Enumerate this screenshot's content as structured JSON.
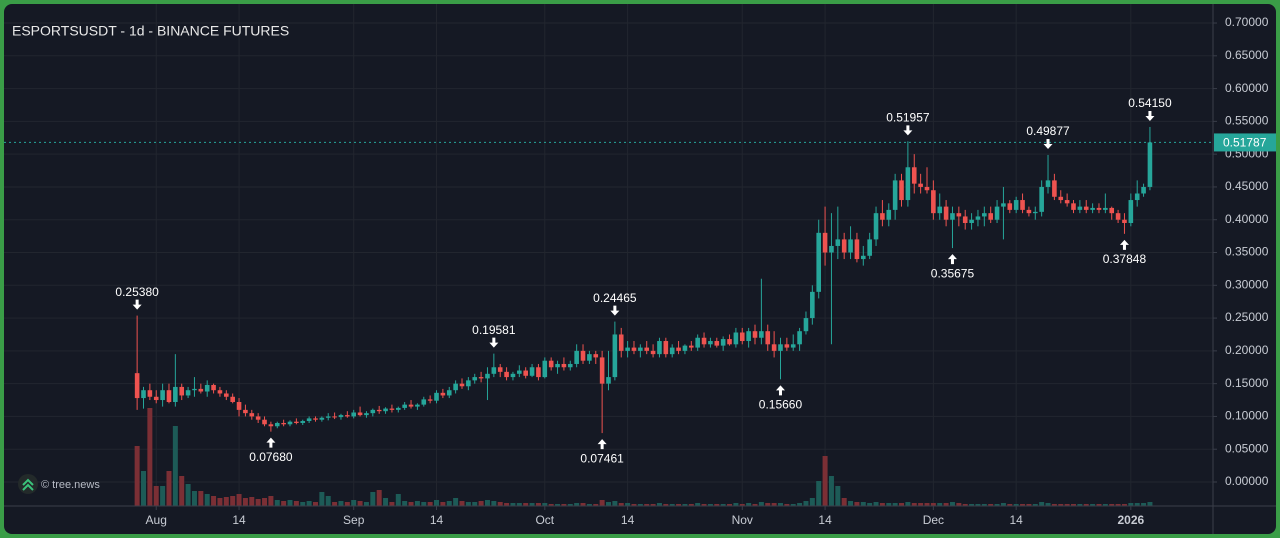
{
  "chart_data": {
    "type": "candlestick",
    "title": "ESPORTSUSDT - 1d - BINANCE FUTURES",
    "watermark": "© tree.news",
    "up_color": "#26a69a",
    "down_color": "#ef5350",
    "volume_up_color": "#1d5b57",
    "volume_down_color": "#7b2f35",
    "grid": true,
    "xlim": [
      -20.9,
      168.9
    ],
    "ylim": [
      -0.0366,
      0.729
    ],
    "xticks": [
      {
        "value": 3,
        "label": "Aug"
      },
      {
        "value": 16,
        "label": "14"
      },
      {
        "value": 34,
        "label": "Sep"
      },
      {
        "value": 47,
        "label": "14"
      },
      {
        "value": 64,
        "label": "Oct"
      },
      {
        "value": 77,
        "label": "14"
      },
      {
        "value": 95,
        "label": "Nov"
      },
      {
        "value": 108,
        "label": "14"
      },
      {
        "value": 125,
        "label": "Dec"
      },
      {
        "value": 138,
        "label": "14"
      },
      {
        "value": 156,
        "label": "2026"
      }
    ],
    "yticks": [
      {
        "value": 0,
        "label": "0.00000"
      },
      {
        "value": 0.05,
        "label": "0.05000"
      },
      {
        "value": 0.1,
        "label": "0.10000"
      },
      {
        "value": 0.15,
        "label": "0.15000"
      },
      {
        "value": 0.2,
        "label": "0.20000"
      },
      {
        "value": 0.25,
        "label": "0.25000"
      },
      {
        "value": 0.3,
        "label": "0.30000"
      },
      {
        "value": 0.35,
        "label": "0.35000"
      },
      {
        "value": 0.4,
        "label": "0.40000"
      },
      {
        "value": 0.45,
        "label": "0.45000"
      },
      {
        "value": 0.5,
        "label": "0.50000"
      },
      {
        "value": 0.55,
        "label": "0.55000"
      },
      {
        "value": 0.6,
        "label": "0.60000"
      },
      {
        "value": 0.65,
        "label": "0.65000"
      },
      {
        "value": 0.7,
        "label": "0.70000"
      }
    ],
    "last_price": {
      "value": 0.51787,
      "label": "0.51787"
    },
    "annotations": [
      {
        "x": 0,
        "value": 0.2538,
        "label": "0.25380",
        "kind": "high"
      },
      {
        "x": 21,
        "value": 0.0768,
        "label": "0.07680",
        "kind": "low"
      },
      {
        "x": 56,
        "value": 0.19581,
        "label": "0.19581",
        "kind": "high"
      },
      {
        "x": 73,
        "value": 0.07461,
        "label": "0.07461",
        "kind": "low"
      },
      {
        "x": 75,
        "value": 0.24465,
        "label": "0.24465",
        "kind": "high"
      },
      {
        "x": 101,
        "value": 0.1566,
        "label": "0.15660",
        "kind": "low"
      },
      {
        "x": 121,
        "value": 0.51957,
        "label": "0.51957",
        "kind": "high"
      },
      {
        "x": 128,
        "value": 0.35675,
        "label": "0.35675",
        "kind": "low"
      },
      {
        "x": 143,
        "value": 0.49877,
        "label": "0.49877",
        "kind": "high"
      },
      {
        "x": 155,
        "value": 0.37848,
        "label": "0.37848",
        "kind": "low"
      },
      {
        "x": 159,
        "value": 0.5415,
        "label": "0.54150",
        "kind": "high"
      }
    ],
    "x": [
      0,
      1,
      2,
      3,
      4,
      5,
      6,
      7,
      8,
      9,
      10,
      11,
      12,
      13,
      14,
      15,
      16,
      17,
      18,
      19,
      20,
      21,
      22,
      23,
      24,
      25,
      26,
      27,
      28,
      29,
      30,
      31,
      32,
      33,
      34,
      35,
      36,
      37,
      38,
      39,
      40,
      41,
      42,
      43,
      44,
      45,
      46,
      47,
      48,
      49,
      50,
      51,
      52,
      53,
      54,
      55,
      56,
      57,
      58,
      59,
      60,
      61,
      62,
      63,
      64,
      65,
      66,
      67,
      68,
      69,
      70,
      71,
      72,
      73,
      74,
      75,
      76,
      77,
      78,
      79,
      80,
      81,
      82,
      83,
      84,
      85,
      86,
      87,
      88,
      89,
      90,
      91,
      92,
      93,
      94,
      95,
      96,
      97,
      98,
      99,
      100,
      101,
      102,
      103,
      104,
      105,
      106,
      107,
      108,
      109,
      110,
      111,
      112,
      113,
      114,
      115,
      116,
      117,
      118,
      119,
      120,
      121,
      122,
      123,
      124,
      125,
      126,
      127,
      128,
      129,
      130,
      131,
      132,
      133,
      134,
      135,
      136,
      137,
      138,
      139,
      140,
      141,
      142,
      143,
      144,
      145,
      146,
      147,
      148,
      149,
      150,
      151,
      152,
      153,
      154,
      155,
      156,
      157,
      158,
      159
    ],
    "open": [
      0.166,
      0.128,
      0.14,
      0.13,
      0.125,
      0.14,
      0.122,
      0.145,
      0.132,
      0.14,
      0.142,
      0.138,
      0.148,
      0.14,
      0.135,
      0.13,
      0.122,
      0.11,
      0.105,
      0.1,
      0.095,
      0.088,
      0.085,
      0.09,
      0.088,
      0.092,
      0.09,
      0.093,
      0.097,
      0.095,
      0.098,
      0.1,
      0.099,
      0.102,
      0.1,
      0.106,
      0.102,
      0.105,
      0.11,
      0.108,
      0.112,
      0.11,
      0.113,
      0.118,
      0.115,
      0.118,
      0.126,
      0.124,
      0.136,
      0.132,
      0.14,
      0.15,
      0.146,
      0.155,
      0.16,
      0.158,
      0.165,
      0.175,
      0.168,
      0.16,
      0.165,
      0.17,
      0.162,
      0.175,
      0.16,
      0.185,
      0.175,
      0.18,
      0.175,
      0.18,
      0.2,
      0.185,
      0.195,
      0.19,
      0.15,
      0.16,
      0.225,
      0.2,
      0.205,
      0.2,
      0.205,
      0.2,
      0.195,
      0.215,
      0.195,
      0.205,
      0.2,
      0.208,
      0.205,
      0.22,
      0.21,
      0.215,
      0.208,
      0.218,
      0.21,
      0.228,
      0.215,
      0.23,
      0.22,
      0.23,
      0.21,
      0.2,
      0.21,
      0.205,
      0.21,
      0.23,
      0.25,
      0.29,
      0.38,
      0.35,
      0.36,
      0.37,
      0.35,
      0.37,
      0.34,
      0.345,
      0.37,
      0.41,
      0.4,
      0.415,
      0.46,
      0.43,
      0.48,
      0.455,
      0.45,
      0.445,
      0.41,
      0.42,
      0.4,
      0.41,
      0.405,
      0.395,
      0.4,
      0.405,
      0.41,
      0.4,
      0.42,
      0.425,
      0.415,
      0.43,
      0.415,
      0.41,
      0.412,
      0.45,
      0.46,
      0.435,
      0.43,
      0.425,
      0.415,
      0.42,
      0.415,
      0.418,
      0.415,
      0.418,
      0.41,
      0.4,
      0.395,
      0.43,
      0.44,
      0.45
    ],
    "high": [
      0.2538,
      0.145,
      0.15,
      0.14,
      0.15,
      0.15,
      0.195,
      0.15,
      0.145,
      0.16,
      0.15,
      0.155,
      0.15,
      0.145,
      0.14,
      0.135,
      0.128,
      0.118,
      0.11,
      0.105,
      0.1,
      0.092,
      0.092,
      0.095,
      0.094,
      0.097,
      0.095,
      0.1,
      0.1,
      0.1,
      0.105,
      0.106,
      0.104,
      0.108,
      0.11,
      0.115,
      0.108,
      0.112,
      0.116,
      0.114,
      0.118,
      0.115,
      0.122,
      0.125,
      0.12,
      0.13,
      0.132,
      0.14,
      0.142,
      0.145,
      0.155,
      0.158,
      0.16,
      0.165,
      0.168,
      0.175,
      0.19581,
      0.18,
      0.175,
      0.168,
      0.178,
      0.175,
      0.18,
      0.18,
      0.19,
      0.19,
      0.185,
      0.19,
      0.185,
      0.21,
      0.21,
      0.2,
      0.2,
      0.2,
      0.2,
      0.24465,
      0.235,
      0.215,
      0.215,
      0.21,
      0.215,
      0.21,
      0.22,
      0.22,
      0.21,
      0.215,
      0.21,
      0.215,
      0.225,
      0.228,
      0.22,
      0.22,
      0.222,
      0.225,
      0.235,
      0.235,
      0.235,
      0.24,
      0.31,
      0.24,
      0.23,
      0.22,
      0.22,
      0.225,
      0.235,
      0.26,
      0.3,
      0.4,
      0.42,
      0.41,
      0.42,
      0.38,
      0.39,
      0.38,
      0.36,
      0.38,
      0.42,
      0.43,
      0.425,
      0.47,
      0.47,
      0.51957,
      0.5,
      0.47,
      0.48,
      0.46,
      0.44,
      0.43,
      0.42,
      0.42,
      0.415,
      0.41,
      0.415,
      0.42,
      0.42,
      0.43,
      0.45,
      0.43,
      0.435,
      0.44,
      0.42,
      0.42,
      0.46,
      0.49877,
      0.47,
      0.445,
      0.44,
      0.43,
      0.43,
      0.43,
      0.425,
      0.425,
      0.44,
      0.42,
      0.415,
      0.41,
      0.44,
      0.46,
      0.455,
      0.5415
    ],
    "low": [
      0.11,
      0.112,
      0.125,
      0.12,
      0.115,
      0.12,
      0.115,
      0.125,
      0.128,
      0.13,
      0.135,
      0.13,
      0.135,
      0.13,
      0.125,
      0.12,
      0.1,
      0.1,
      0.095,
      0.09,
      0.085,
      0.0768,
      0.082,
      0.085,
      0.085,
      0.088,
      0.087,
      0.09,
      0.092,
      0.092,
      0.094,
      0.096,
      0.095,
      0.098,
      0.097,
      0.1,
      0.098,
      0.1,
      0.104,
      0.104,
      0.106,
      0.106,
      0.11,
      0.112,
      0.11,
      0.115,
      0.12,
      0.12,
      0.128,
      0.128,
      0.135,
      0.142,
      0.14,
      0.15,
      0.152,
      0.125,
      0.16,
      0.16,
      0.155,
      0.155,
      0.16,
      0.158,
      0.16,
      0.155,
      0.158,
      0.17,
      0.165,
      0.17,
      0.17,
      0.175,
      0.18,
      0.18,
      0.18,
      0.07461,
      0.14,
      0.155,
      0.19,
      0.19,
      0.195,
      0.19,
      0.195,
      0.19,
      0.19,
      0.19,
      0.19,
      0.195,
      0.195,
      0.2,
      0.2,
      0.205,
      0.205,
      0.205,
      0.2,
      0.208,
      0.205,
      0.21,
      0.205,
      0.21,
      0.21,
      0.2,
      0.19,
      0.1566,
      0.2,
      0.2,
      0.2,
      0.225,
      0.24,
      0.28,
      0.33,
      0.21,
      0.34,
      0.34,
      0.34,
      0.335,
      0.33,
      0.34,
      0.36,
      0.39,
      0.39,
      0.4,
      0.42,
      0.42,
      0.44,
      0.44,
      0.44,
      0.4,
      0.4,
      0.39,
      0.35675,
      0.39,
      0.385,
      0.385,
      0.39,
      0.39,
      0.395,
      0.395,
      0.37,
      0.41,
      0.41,
      0.41,
      0.405,
      0.4,
      0.405,
      0.44,
      0.43,
      0.425,
      0.42,
      0.41,
      0.41,
      0.41,
      0.41,
      0.41,
      0.41,
      0.4,
      0.395,
      0.37848,
      0.39,
      0.42,
      0.435,
      0.445
    ],
    "close": [
      0.128,
      0.14,
      0.13,
      0.125,
      0.14,
      0.122,
      0.145,
      0.132,
      0.14,
      0.142,
      0.138,
      0.148,
      0.14,
      0.135,
      0.13,
      0.122,
      0.11,
      0.105,
      0.1,
      0.095,
      0.088,
      0.085,
      0.09,
      0.088,
      0.092,
      0.09,
      0.093,
      0.097,
      0.095,
      0.098,
      0.1,
      0.099,
      0.102,
      0.1,
      0.106,
      0.102,
      0.105,
      0.11,
      0.108,
      0.112,
      0.11,
      0.113,
      0.118,
      0.115,
      0.118,
      0.126,
      0.124,
      0.136,
      0.132,
      0.14,
      0.15,
      0.146,
      0.155,
      0.16,
      0.158,
      0.165,
      0.175,
      0.168,
      0.16,
      0.165,
      0.17,
      0.162,
      0.175,
      0.16,
      0.185,
      0.175,
      0.18,
      0.175,
      0.18,
      0.2,
      0.185,
      0.195,
      0.19,
      0.15,
      0.16,
      0.225,
      0.2,
      0.205,
      0.2,
      0.205,
      0.2,
      0.195,
      0.215,
      0.195,
      0.205,
      0.2,
      0.208,
      0.205,
      0.22,
      0.21,
      0.215,
      0.208,
      0.218,
      0.21,
      0.228,
      0.215,
      0.23,
      0.22,
      0.23,
      0.21,
      0.2,
      0.21,
      0.205,
      0.21,
      0.23,
      0.25,
      0.29,
      0.38,
      0.35,
      0.36,
      0.37,
      0.35,
      0.37,
      0.34,
      0.345,
      0.37,
      0.41,
      0.4,
      0.415,
      0.46,
      0.43,
      0.48,
      0.455,
      0.45,
      0.445,
      0.41,
      0.42,
      0.4,
      0.41,
      0.405,
      0.395,
      0.4,
      0.405,
      0.41,
      0.4,
      0.42,
      0.425,
      0.415,
      0.43,
      0.415,
      0.41,
      0.412,
      0.45,
      0.46,
      0.435,
      0.43,
      0.425,
      0.415,
      0.42,
      0.415,
      0.418,
      0.415,
      0.418,
      0.41,
      0.4,
      0.395,
      0.43,
      0.44,
      0.45,
      0.51787
    ],
    "volume": [
      60,
      35,
      98,
      20,
      20,
      35,
      80,
      30,
      22,
      15,
      15,
      12,
      10,
      8,
      9,
      10,
      12,
      8,
      9,
      7,
      8,
      10,
      6,
      5,
      6,
      5,
      4,
      5,
      4,
      14,
      10,
      4,
      5,
      4,
      6,
      5,
      4,
      14,
      16,
      8,
      4,
      12,
      5,
      4,
      5,
      4,
      4,
      6,
      4,
      5,
      8,
      5,
      4,
      4,
      5,
      6,
      5,
      4,
      3,
      3,
      3,
      3,
      3,
      3,
      3,
      2,
      2,
      2,
      2,
      3,
      3,
      2,
      2,
      6,
      4,
      5,
      3,
      3,
      2,
      2,
      2,
      2,
      3,
      2,
      2,
      2,
      2,
      2,
      3,
      2,
      2,
      2,
      2,
      2,
      3,
      2,
      3,
      2,
      4,
      3,
      3,
      3,
      2,
      2,
      3,
      5,
      8,
      25,
      50,
      30,
      20,
      8,
      5,
      4,
      4,
      3,
      4,
      3,
      3,
      3,
      3,
      4,
      3,
      3,
      3,
      3,
      3,
      3,
      4,
      3,
      2,
      2,
      2,
      2,
      2,
      2,
      3,
      2,
      2,
      2,
      2,
      2,
      4,
      3,
      2,
      2,
      2,
      2,
      2,
      2,
      2,
      2,
      2,
      2,
      2,
      2,
      3,
      3,
      3,
      4
    ]
  }
}
